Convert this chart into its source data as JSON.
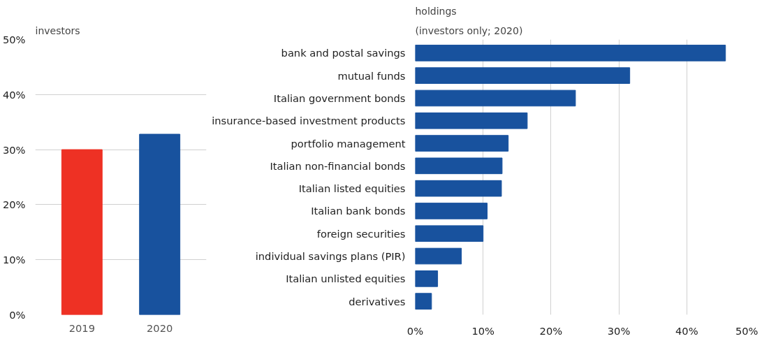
{
  "chart_data": [
    {
      "type": "bar",
      "title": "investors",
      "categories": [
        "2019",
        "2020"
      ],
      "values": [
        30.0,
        32.8
      ],
      "colors": [
        "#ee3124",
        "#18529e"
      ],
      "ylim": [
        0,
        50
      ],
      "yticks": [
        {
          "value": 0,
          "label": "0%"
        },
        {
          "value": 10,
          "label": "10%"
        },
        {
          "value": 20,
          "label": "20%"
        },
        {
          "value": 30,
          "label": "30%"
        },
        {
          "value": 40,
          "label": "40%"
        },
        {
          "value": 50,
          "label": "50%"
        }
      ],
      "grid": "y"
    },
    {
      "type": "bar",
      "orientation": "horizontal",
      "title": "holdings",
      "subtitle": "(investors only; 2020)",
      "categories": [
        "bank and postal savings",
        "mutual funds",
        "Italian government bonds",
        "insurance-based investment products",
        "portfolio management",
        "Italian non-financial bonds",
        "Italian listed equities",
        "Italian bank bonds",
        "foreign securities",
        "individual savings plans (PIR)",
        "Italian unlisted equities",
        "derivatives"
      ],
      "values": [
        45.7,
        31.6,
        23.6,
        16.5,
        13.7,
        12.8,
        12.7,
        10.6,
        10.0,
        6.8,
        3.3,
        2.4
      ],
      "color": "#18529e",
      "xlim": [
        0,
        50
      ],
      "xticks": [
        {
          "value": 0,
          "label": "0%"
        },
        {
          "value": 10,
          "label": "10%"
        },
        {
          "value": 20,
          "label": "20%"
        },
        {
          "value": 30,
          "label": "30%"
        },
        {
          "value": 40,
          "label": "40%"
        },
        {
          "value": 50,
          "label": "50%"
        }
      ],
      "grid": "x"
    }
  ]
}
